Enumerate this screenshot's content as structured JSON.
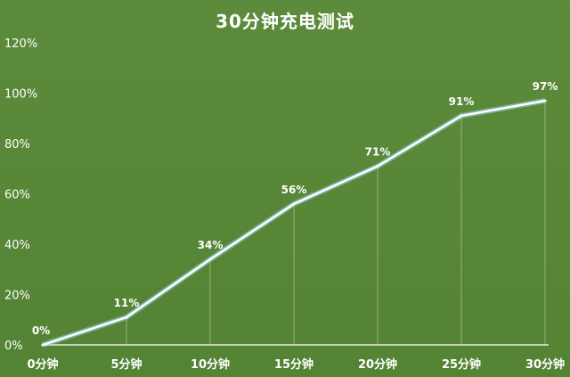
{
  "chart_data": {
    "type": "line",
    "title": "30分钟充电测试",
    "xlabel": "",
    "ylabel": "",
    "categories": [
      "0分钟",
      "5分钟",
      "10分钟",
      "15分钟",
      "20分钟",
      "25分钟",
      "30分钟"
    ],
    "values": [
      0,
      11,
      34,
      56,
      71,
      91,
      97
    ],
    "data_labels": [
      "0%",
      "11%",
      "34%",
      "56%",
      "71%",
      "91%",
      "97%"
    ],
    "ylim": [
      0,
      120
    ],
    "yticks": [
      "0%",
      "20%",
      "40%",
      "60%",
      "80%",
      "100%",
      "120%"
    ],
    "grid": false,
    "legend": "none",
    "colors": {
      "background": "#5a8a3a",
      "line": "#ffffff",
      "line_glow": "#9fd3f0",
      "text": "#ffffff"
    }
  }
}
